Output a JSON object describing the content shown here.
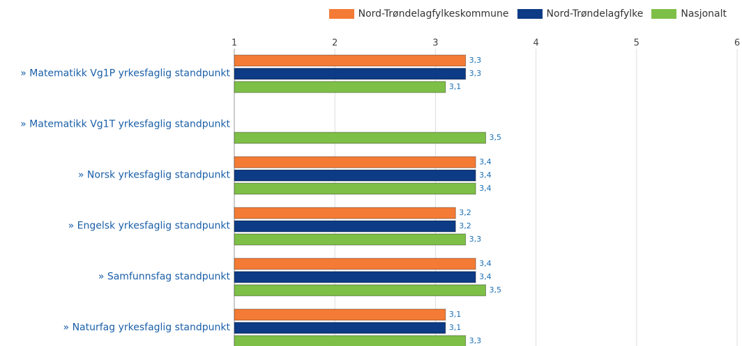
{
  "chart_data": {
    "type": "bar",
    "orientation": "horizontal",
    "categories": [
      "» Matematikk Vg1P yrkesfaglig standpunkt",
      "» Matematikk Vg1T yrkesfaglig standpunkt",
      "» Norsk yrkesfaglig standpunkt",
      "» Engelsk yrkesfaglig standpunkt",
      "» Samfunnsfag standpunkt",
      "» Naturfag yrkesfaglig standpunkt"
    ],
    "series": [
      {
        "name": "Nord-Trøndelagfylkeskommune",
        "color": "#f47b35",
        "values": [
          3.3,
          null,
          3.4,
          3.2,
          3.4,
          3.1
        ],
        "value_labels": [
          "3,3",
          null,
          "3,4",
          "3,2",
          "3,4",
          "3,1"
        ]
      },
      {
        "name": "Nord-Trøndelagfylke",
        "color": "#0d3b85",
        "values": [
          3.3,
          null,
          3.4,
          3.2,
          3.4,
          3.1
        ],
        "value_labels": [
          "3,3",
          null,
          "3,4",
          "3,2",
          "3,4",
          "3,1"
        ]
      },
      {
        "name": "Nasjonalt",
        "color": "#7ebf47",
        "values": [
          3.1,
          3.5,
          3.4,
          3.3,
          3.5,
          3.3
        ],
        "value_labels": [
          "3,1",
          "3,5",
          "3,4",
          "3,3",
          "3,5",
          "3,3"
        ]
      }
    ],
    "xlim": [
      1,
      6
    ],
    "xticks": [
      1,
      2,
      3,
      4,
      5,
      6
    ],
    "grid": true,
    "legend": "top"
  }
}
